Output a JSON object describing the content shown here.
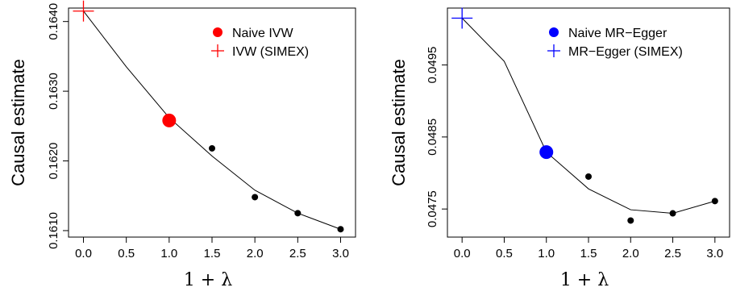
{
  "chart_data": [
    {
      "type": "scatter",
      "title": "",
      "xlabel": "1 + λ",
      "ylabel": "Causal estimate",
      "xlim": [
        0,
        3
      ],
      "ylim": [
        0.161,
        0.1641
      ],
      "x_ticks": [
        "0.0",
        "0.5",
        "1.0",
        "1.5",
        "2.0",
        "2.5",
        "3.0"
      ],
      "y_ticks": [
        "0.1610",
        "0.1620",
        "0.1630",
        "0.1640"
      ],
      "legend_position": "top-right",
      "accent_color": "#ff0000",
      "fit_line": {
        "x": [
          0.0,
          0.5,
          1.0,
          1.5,
          2.0,
          2.5,
          3.0
        ],
        "y": [
          0.16415,
          0.16335,
          0.16262,
          0.16207,
          0.16158,
          0.16125,
          0.16102
        ]
      },
      "series": [
        {
          "name": "Naive IVW",
          "marker": "large-dot",
          "color": "#ff0000",
          "x": [
            1.0
          ],
          "y": [
            0.16258
          ]
        },
        {
          "name": "IVW (SIMEX)",
          "marker": "plus",
          "color": "#ff0000",
          "x": [
            0.0
          ],
          "y": [
            0.16415
          ]
        },
        {
          "name": "",
          "marker": "small-dot",
          "color": "#000000",
          "x": [
            1.5,
            2.0,
            2.5,
            3.0
          ],
          "y": [
            0.16218,
            0.16148,
            0.16125,
            0.16102
          ]
        }
      ]
    },
    {
      "type": "scatter",
      "title": "",
      "xlabel": "1 + λ",
      "ylabel": "Causal estimate",
      "xlim": [
        0,
        3
      ],
      "ylim": [
        0.0472,
        0.0502
      ],
      "x_ticks": [
        "0.0",
        "0.5",
        "1.0",
        "1.5",
        "2.0",
        "2.5",
        "3.0"
      ],
      "y_ticks": [
        "0.0475",
        "0.0485",
        "0.0495"
      ],
      "legend_position": "top-right",
      "accent_color": "#0000ff",
      "fit_line": {
        "x": [
          0.0,
          0.5,
          1.0,
          1.5,
          2.0,
          2.5,
          3.0
        ],
        "y": [
          0.05015,
          0.04955,
          0.04829,
          0.04778,
          0.04749,
          0.04744,
          0.04761
        ]
      },
      "series": [
        {
          "name": "Naive MR−Egger",
          "marker": "large-dot",
          "color": "#0000ff",
          "x": [
            1.0
          ],
          "y": [
            0.04829
          ]
        },
        {
          "name": "MR−Egger (SIMEX)",
          "marker": "plus",
          "color": "#0000ff",
          "x": [
            0.0
          ],
          "y": [
            0.05015
          ]
        },
        {
          "name": "",
          "marker": "small-dot",
          "color": "#000000",
          "x": [
            1.5,
            2.0,
            2.5,
            3.0
          ],
          "y": [
            0.04795,
            0.04734,
            0.04744,
            0.04761
          ]
        }
      ]
    }
  ]
}
